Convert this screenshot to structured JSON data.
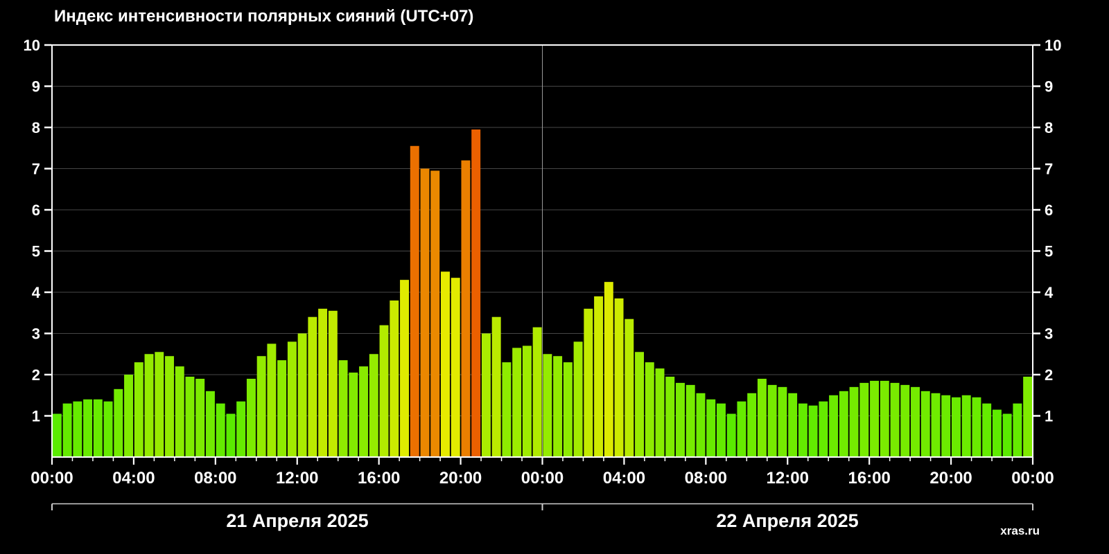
{
  "watermark": "xras.ru",
  "chart_data": {
    "type": "bar",
    "title": "Индекс интенсивности полярных сияний (UTC+07)",
    "xlabel": "",
    "ylabel": "",
    "ylim": [
      0,
      10
    ],
    "y_ticks": [
      1,
      2,
      3,
      4,
      5,
      6,
      7,
      8,
      9,
      10
    ],
    "bar_interval_minutes": 30,
    "hours_total": 48,
    "grid": "horizontal gray lines at each integer, vertical gray line at day boundary, white plot frame",
    "legend": "none",
    "background_color": "#000000",
    "text_color": "#ffffff",
    "x_labels": [
      "00:00",
      "04:00",
      "08:00",
      "12:00",
      "16:00",
      "20:00",
      "00:00",
      "04:00",
      "08:00",
      "12:00",
      "16:00",
      "20:00",
      "00:00"
    ],
    "color_scale": {
      "description": "green for low index, yellow near 4, orange near 7-8",
      "hue_base": 108,
      "hue_per_unit": 10.5,
      "hue_min": 24,
      "saturation": 100,
      "lightness": 46
    },
    "days": [
      {
        "date_label": "21 Апреля 2025",
        "values": [
          1.05,
          1.3,
          1.35,
          1.4,
          1.4,
          1.35,
          1.65,
          2.0,
          2.3,
          2.5,
          2.55,
          2.45,
          2.2,
          1.95,
          1.9,
          1.6,
          1.3,
          1.05,
          1.35,
          1.9,
          2.45,
          2.75,
          2.35,
          2.8,
          3.0,
          3.4,
          3.6,
          3.55,
          2.35,
          2.05,
          2.2,
          2.5,
          3.2,
          3.8,
          4.3,
          7.55,
          7.0,
          6.95,
          4.5,
          4.35,
          7.2,
          7.95,
          3.0,
          3.4,
          2.3,
          2.65,
          2.7,
          3.15
        ]
      },
      {
        "date_label": "22 Апреля 2025",
        "values": [
          2.5,
          2.45,
          2.3,
          2.8,
          3.6,
          3.9,
          4.25,
          3.85,
          3.35,
          2.55,
          2.3,
          2.15,
          1.95,
          1.8,
          1.75,
          1.55,
          1.4,
          1.3,
          1.05,
          1.35,
          1.55,
          1.9,
          1.75,
          1.7,
          1.55,
          1.3,
          1.25,
          1.35,
          1.5,
          1.6,
          1.7,
          1.8,
          1.85,
          1.85,
          1.8,
          1.75,
          1.7,
          1.6,
          1.55,
          1.5,
          1.45,
          1.5,
          1.45,
          1.3,
          1.15,
          1.05,
          1.3,
          1.95
        ]
      }
    ]
  }
}
